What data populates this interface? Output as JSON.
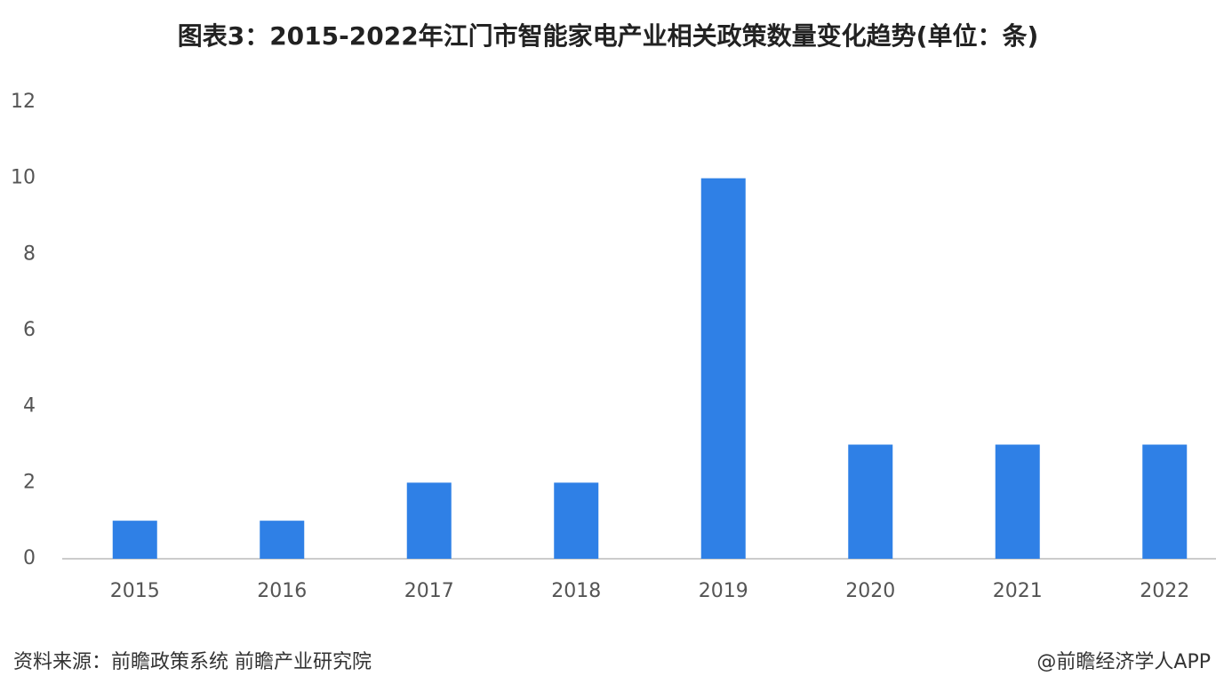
{
  "chart_data": {
    "type": "bar",
    "title": "图表3：2015-2022年江门市智能家电产业相关政策数量变化趋势(单位：条)",
    "categories": [
      "2015",
      "2016",
      "2017",
      "2018",
      "2019",
      "2020",
      "2021",
      "2022"
    ],
    "values": [
      1,
      1,
      2,
      2,
      10,
      3,
      3,
      3
    ],
    "color": "#2f80e6",
    "ylim": [
      0,
      12
    ],
    "yticks": [
      0,
      2,
      4,
      6,
      8,
      10,
      12
    ],
    "grid": false,
    "source": "资料来源：前瞻政策系统 前瞻产业研究院",
    "credit": "@前瞻经济学人APP"
  }
}
